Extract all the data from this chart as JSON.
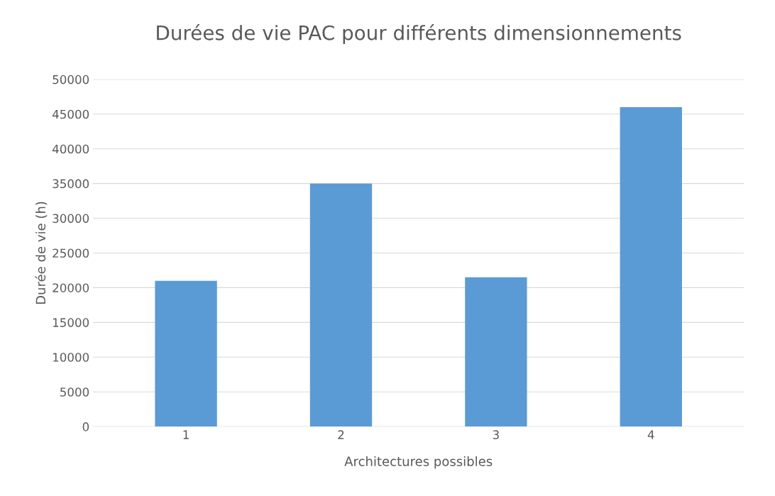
{
  "chart_data": {
    "type": "bar",
    "title": "Durées de vie PAC pour différents dimensionnements",
    "xlabel": "Architectures possibles",
    "ylabel": "Durée de vie (h)",
    "categories": [
      "1",
      "2",
      "3",
      "4"
    ],
    "values": [
      21000,
      35000,
      21500,
      46000
    ],
    "color": "#5b9bd5",
    "ylim": [
      0,
      50000
    ],
    "yticks": [
      0,
      5000,
      10000,
      15000,
      20000,
      25000,
      30000,
      35000,
      40000,
      45000,
      50000
    ],
    "grid": "y"
  }
}
